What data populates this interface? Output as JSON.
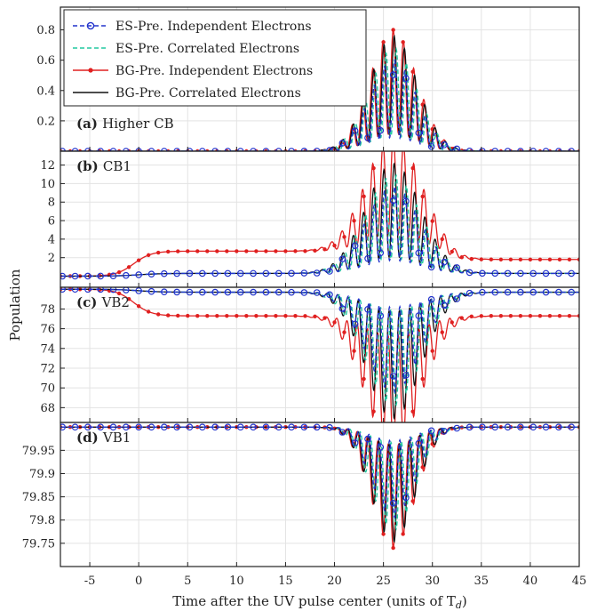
{
  "chart_data": {
    "type": "line",
    "xlabel": "Time after the UV pulse center (units of T",
    "xlabel_sub": "d",
    "xlabel_close": ")",
    "ylabel": "Population",
    "xlim": [
      -8,
      45
    ],
    "xticks": [
      -5,
      0,
      5,
      10,
      15,
      20,
      25,
      30,
      35,
      40,
      45
    ],
    "grid": true,
    "legend": {
      "placement": "top-left",
      "entries": [
        {
          "label": "ES-Pre. Independent Electrons",
          "color": "#2233cc",
          "style": "dashed-circle"
        },
        {
          "label": "ES-Pre. Correlated Electrons",
          "color": "#22c9a0",
          "style": "dashed"
        },
        {
          "label": "BG-Pre. Independent Electrons",
          "color": "#e02020",
          "style": "solid-dot"
        },
        {
          "label": "BG-Pre. Correlated Electrons",
          "color": "#111111",
          "style": "solid"
        }
      ]
    },
    "panels": [
      {
        "label_bold": "(a)",
        "label": "Higher CB",
        "ylim": [
          0,
          0.95
        ],
        "yticks": [
          "0.2",
          "0.4",
          "0.6",
          "0.8"
        ],
        "ytick_values": [
          0.2,
          0.4,
          0.6,
          0.8
        ],
        "baseline": 0,
        "plateau_bg_indep": 0,
        "plateau_others": 0,
        "peak_t": 26,
        "peak_width": 2.4,
        "peak_amp": 0.8,
        "direction": 1
      },
      {
        "label_bold": "(b)",
        "label": "CB1",
        "ylim": [
          -1.2,
          13.5
        ],
        "yticks": [
          "2",
          "4",
          "6",
          "8",
          "10",
          "12"
        ],
        "ytick_values": [
          2,
          4,
          6,
          8,
          10,
          12
        ],
        "baseline": 0,
        "plateau_bg_indep": 2.7,
        "plateau_bg_indep_late": 1.8,
        "plateau_others": 0.3,
        "peak_t": 26,
        "peak_width": 2.8,
        "peak_amp": 12.5,
        "direction": 1
      },
      {
        "label_bold": "(c)",
        "label": "VB2",
        "ylim": [
          66.5,
          80.2
        ],
        "yticks": [
          "68",
          "70",
          "72",
          "74",
          "76",
          "78"
        ],
        "ytick_values": [
          68,
          70,
          72,
          74,
          76,
          78
        ],
        "baseline": 80,
        "plateau_bg_indep": -2.7,
        "plateau_bg_indep_late": -2.7,
        "plateau_others": -0.3,
        "peak_t": 26,
        "peak_width": 2.8,
        "peak_amp": 13.5,
        "direction": -1
      },
      {
        "label_bold": "(d)",
        "label": "VB1",
        "ylim": [
          79.7,
          80.01
        ],
        "yticks": [
          "79.75",
          "79.8",
          "79.85",
          "79.9",
          "79.95"
        ],
        "ytick_values": [
          79.75,
          79.8,
          79.85,
          79.9,
          79.95
        ],
        "baseline": 80,
        "plateau_bg_indep": 0,
        "plateau_others": 0,
        "peak_t": 26,
        "peak_width": 2.2,
        "peak_amp": 0.26,
        "direction": -1
      }
    ]
  }
}
